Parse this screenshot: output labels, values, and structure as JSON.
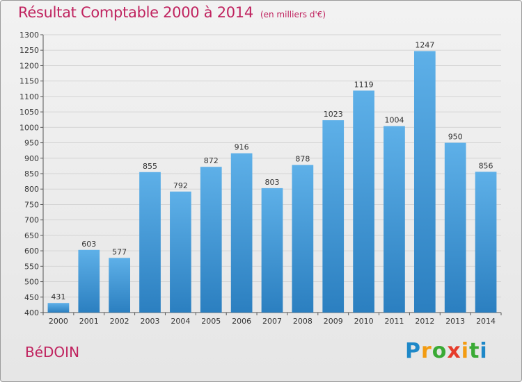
{
  "header": {
    "title": "Résultat Comptable 2000 à 2014",
    "unit": "(en milliers d'€)"
  },
  "footer": {
    "commune": "BéDOIN",
    "logo_letters": [
      "P",
      "r",
      "o",
      "x",
      "i",
      "t",
      "i"
    ],
    "logo_colors": [
      "#1e88c8",
      "#f39c12",
      "#3aaa35",
      "#e63c2b",
      "#f39c12",
      "#3aaa35",
      "#1e88c8"
    ]
  },
  "colors": {
    "bar_light": "#5eb0e8",
    "bar_dark": "#2b7fc0",
    "title": "#c0235f"
  },
  "chart_data": {
    "type": "bar",
    "title": "Résultat Comptable 2000 à 2014",
    "xlabel": "",
    "ylabel": "",
    "ylim": [
      400,
      1300
    ],
    "ytick_step": 50,
    "grid": true,
    "categories": [
      "2000",
      "2001",
      "2002",
      "2003",
      "2004",
      "2005",
      "2006",
      "2007",
      "2008",
      "2009",
      "2010",
      "2011",
      "2012",
      "2013",
      "2014"
    ],
    "values": [
      431,
      603,
      577,
      855,
      792,
      872,
      916,
      803,
      878,
      1023,
      1119,
      1004,
      1247,
      950,
      856
    ]
  }
}
